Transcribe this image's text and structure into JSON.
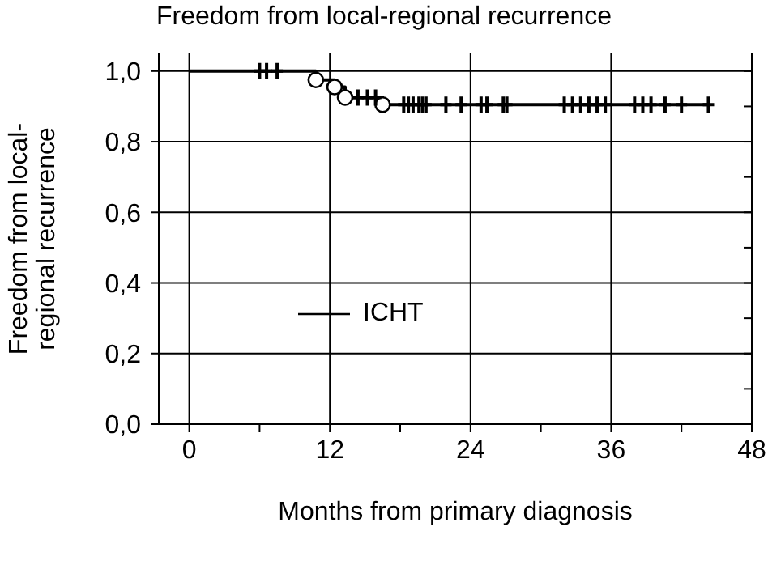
{
  "chart_data": {
    "type": "step",
    "title": "Freedom from local-regional recurrence",
    "xlabel": "Months from primary diagnosis",
    "ylabel": "Freedom from local-\nregional recurrence",
    "xlim": [
      -2.6,
      48
    ],
    "xticks": [
      0,
      {
        "value": 6,
        "label": null
      },
      12,
      {
        "value": 18,
        "label": null
      },
      24,
      {
        "value": 30,
        "label": null
      },
      36,
      {
        "value": 42,
        "label": null
      },
      48
    ],
    "ylim": [
      0,
      1.05
    ],
    "yticks": [
      {
        "value": 0,
        "label": "0,0"
      },
      {
        "value": 0.1,
        "label": null
      },
      {
        "value": 0.2,
        "label": "0,2"
      },
      {
        "value": 0.3,
        "label": null
      },
      {
        "value": 0.4,
        "label": "0,4"
      },
      {
        "value": 0.5,
        "label": null
      },
      {
        "value": 0.6,
        "label": "0,6"
      },
      {
        "value": 0.7,
        "label": null
      },
      {
        "value": 0.8,
        "label": "0,8"
      },
      {
        "value": 0.9,
        "label": null
      },
      {
        "value": 1,
        "label": "1,0"
      }
    ],
    "grid": true,
    "legend": "left",
    "series": [
      {
        "name": "ICHT",
        "type": "step",
        "color": "#000000",
        "marker": "none",
        "x": [
          0,
          10.8,
          12.4,
          13.3,
          16.5,
          44.3
        ],
        "values": [
          1,
          0.975,
          0.955,
          0.925,
          0.905,
          0.905
        ]
      },
      {
        "type": "scatter",
        "color": "#000000",
        "marker": "circle",
        "x": [
          10.8,
          12.4,
          13.3,
          16.5
        ],
        "values": [
          0.975,
          0.955,
          0.925,
          0.905
        ]
      },
      {
        "type": "scatter",
        "color": "#000000",
        "marker": "cross",
        "x": [
          6.0,
          6.6,
          7.5,
          14.4,
          15.2,
          15.9,
          18.3,
          18.7,
          19.1,
          19.6,
          19.9,
          20.2,
          21.9,
          23.2,
          24.9,
          25.4,
          26.8,
          27.1,
          32.0,
          32.7,
          33.4,
          34.1,
          34.8,
          35.5,
          38.0,
          38.7,
          39.4,
          40.6,
          42.0,
          44.3
        ],
        "values": [
          1,
          1,
          1,
          0.925,
          0.925,
          0.925,
          0.905,
          0.905,
          0.905,
          0.905,
          0.905,
          0.905,
          0.905,
          0.905,
          0.905,
          0.905,
          0.905,
          0.905,
          0.905,
          0.905,
          0.905,
          0.905,
          0.905,
          0.905,
          0.905,
          0.905,
          0.905,
          0.905,
          0.905,
          0.905
        ]
      }
    ]
  }
}
